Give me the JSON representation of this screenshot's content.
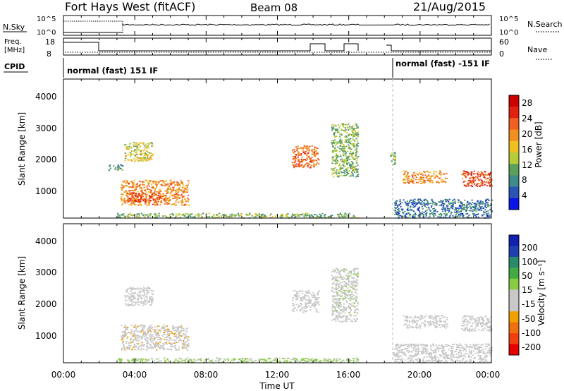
{
  "header": {
    "title": "Fort Hays West (fitACF)",
    "beam": "Beam 08",
    "date": "21/Aug/2015"
  },
  "noise_panel": {
    "left_label": "N.Sky",
    "right_label": "N.Search",
    "left_ticks": [
      "10^5",
      "10^0"
    ],
    "right_ticks": [
      "10^5",
      "10^0"
    ]
  },
  "freq_panel": {
    "left_label_line1": "Freq.",
    "left_label_line2": "[MHz]",
    "right_label": "Nave",
    "left_ticks": [
      "18",
      "8"
    ],
    "right_ticks": [
      "60",
      "0"
    ]
  },
  "cpid_panel": {
    "label": "CPID",
    "segments": [
      {
        "start_hour": 0,
        "end_hour": 18.5,
        "text": "normal (fast) 151 IF"
      },
      {
        "start_hour": 18.5,
        "end_hour": 24,
        "text": "normal (fast)  -151 IF"
      }
    ]
  },
  "power_panel": {
    "ylabel": "Slant Range [km]",
    "yticks": [
      "4000",
      "3000",
      "2000",
      "1000"
    ],
    "colorbar_label": "Power [dB]",
    "colorbar_ticks": [
      "28",
      "24",
      "20",
      "16",
      "12",
      "8",
      "4"
    ]
  },
  "velocity_panel": {
    "ylabel": "Slant Range [km]",
    "yticks": [
      "4000",
      "3000",
      "2000",
      "1000"
    ],
    "colorbar_label": "Velocity [m s⁻¹]",
    "colorbar_ticks": [
      "200",
      "100",
      "50",
      "15",
      "-15",
      "-50",
      "-100",
      "-200"
    ]
  },
  "x_axis": {
    "label": "Time UT",
    "ticks": [
      "00:00",
      "04:00",
      "08:00",
      "12:00",
      "16:00",
      "20:00",
      "00:00"
    ]
  },
  "colors": {
    "power_scale": [
      "#0a14e6",
      "#2a55b3",
      "#3f8a8a",
      "#5aa05a",
      "#b8cc3a",
      "#f0c020",
      "#f09020",
      "#f06020",
      "#e02010",
      "#cc0000"
    ],
    "velocity_scale": [
      "#e60000",
      "#f04010",
      "#f07010",
      "#f0a000",
      "#c8c8c8",
      "#c8c8c8",
      "#88cc44",
      "#44aa44",
      "#2a8a6a",
      "#2040b0",
      "#1020b0"
    ]
  },
  "chart_data": [
    {
      "type": "heatmap",
      "title": "Power",
      "xlabel": "Time UT",
      "ylabel": "Slant Range [km]",
      "xlim": [
        0,
        24
      ],
      "ylim": [
        180,
        4600
      ],
      "colorbar_range_db": [
        0,
        32
      ],
      "blobs": [
        {
          "t": [
            3.4,
            5.0
          ],
          "r": [
            2000,
            2600
          ],
          "value_db": 16
        },
        {
          "t": [
            2.5,
            3.3
          ],
          "r": [
            1700,
            1900
          ],
          "value_db": 8
        },
        {
          "t": [
            3.2,
            7.0
          ],
          "r": [
            600,
            1400
          ],
          "value_db": 22
        },
        {
          "t": [
            3.5,
            5.5
          ],
          "r": [
            700,
            1000
          ],
          "value_db": 26
        },
        {
          "t": [
            3.0,
            16.5
          ],
          "r": [
            200,
            350
          ],
          "value_db": 12
        },
        {
          "t": [
            12.8,
            14.3
          ],
          "r": [
            1800,
            2500
          ],
          "value_db": 24
        },
        {
          "t": [
            15.0,
            16.5
          ],
          "r": [
            1500,
            3200
          ],
          "value_db": 12
        },
        {
          "t": [
            18.3,
            18.6
          ],
          "r": [
            1900,
            2300
          ],
          "value_db": 12
        },
        {
          "t": [
            19.0,
            21.5
          ],
          "r": [
            1300,
            1700
          ],
          "value_db": 22
        },
        {
          "t": [
            22.3,
            24.0
          ],
          "r": [
            1200,
            1700
          ],
          "value_db": 26
        },
        {
          "t": [
            18.5,
            24.0
          ],
          "r": [
            200,
            800
          ],
          "value_db": 6
        }
      ]
    },
    {
      "type": "heatmap",
      "title": "Velocity",
      "xlabel": "Time UT",
      "ylabel": "Slant Range [km]",
      "xlim": [
        0,
        24
      ],
      "ylim": [
        180,
        4600
      ],
      "colorbar_range": [
        -250,
        250
      ],
      "blobs": [
        {
          "t": [
            3.4,
            5.0
          ],
          "r": [
            2000,
            2600
          ],
          "value": 0
        },
        {
          "t": [
            3.2,
            7.0
          ],
          "r": [
            600,
            1400
          ],
          "value": -60
        },
        {
          "t": [
            3.0,
            16.5
          ],
          "r": [
            200,
            350
          ],
          "value": 30
        },
        {
          "t": [
            12.8,
            14.3
          ],
          "r": [
            1800,
            2500
          ],
          "value": 0
        },
        {
          "t": [
            15.0,
            16.5
          ],
          "r": [
            1500,
            3200
          ],
          "value": 10
        },
        {
          "t": [
            19.0,
            21.5
          ],
          "r": [
            1300,
            1700
          ],
          "value": 0
        },
        {
          "t": [
            22.3,
            24.0
          ],
          "r": [
            1200,
            1700
          ],
          "value": 0
        },
        {
          "t": [
            18.5,
            24.0
          ],
          "r": [
            200,
            800
          ],
          "value": 5
        }
      ]
    }
  ]
}
